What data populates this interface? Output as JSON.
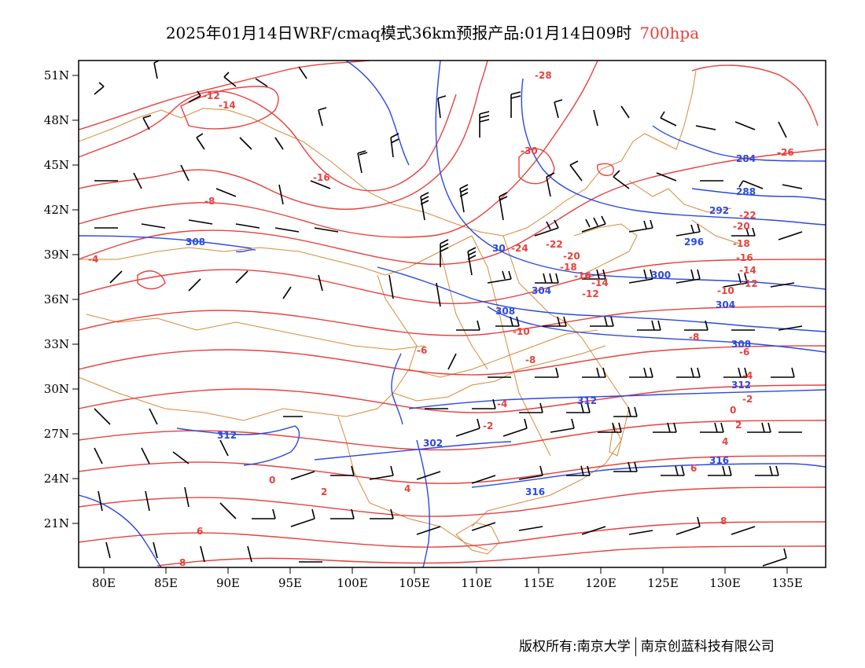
{
  "title": {
    "main": "2025年01月14日WRF/cmaq模式36km预报产品:01月14日09时",
    "level": "700hpa",
    "level_color": "#e8413c"
  },
  "axes": {
    "lat_labels": [
      "51N",
      "48N",
      "45N",
      "42N",
      "39N",
      "36N",
      "33N",
      "30N",
      "27N",
      "24N",
      "21N"
    ],
    "lon_labels": [
      "80E",
      "85E",
      "90E",
      "95E",
      "100E",
      "105E",
      "110E",
      "115E",
      "120E",
      "125E",
      "130E",
      "135E"
    ]
  },
  "colors": {
    "temperature_contour": "#e8413c",
    "height_contour": "#2a49e0",
    "border": "#d8893a",
    "wind_barb": "#000000"
  },
  "contour_labels": {
    "temperature": [
      "-12",
      "-14",
      "-16",
      "-8",
      "-4",
      "-28",
      "-30",
      "-26",
      "-24",
      "-22",
      "-20",
      "-18",
      "-16",
      "-14",
      "-12",
      "-10",
      "-8",
      "-6",
      "-4",
      "-2",
      "0",
      "2",
      "4",
      "6",
      "8",
      "-22",
      "-20",
      "-18",
      "-16",
      "-14",
      "-12",
      "-10",
      "-8",
      "-6",
      "-4",
      "-2",
      "0",
      "2",
      "4",
      "6",
      "8"
    ],
    "height": [
      "308",
      "284",
      "288",
      "292",
      "296",
      "300",
      "304",
      "308",
      "312",
      "312",
      "302",
      "316",
      "316",
      "30",
      "304",
      "308",
      "312"
    ]
  },
  "footer": {
    "copyright": "版权所有:南京大学",
    "company": "南京创蓝科技有限公司"
  }
}
